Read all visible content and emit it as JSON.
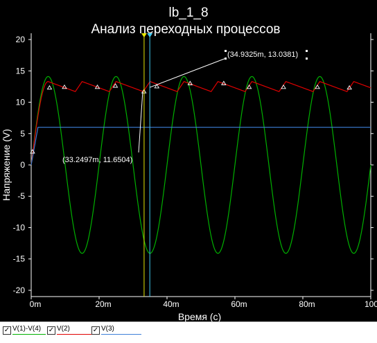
{
  "chart_data": {
    "type": "line",
    "title": "lb_1_8",
    "subtitle": "Анализ переходных процессов",
    "xlabel": "Время (с)",
    "ylabel": "Напряжение (V)",
    "xlim": [
      0,
      100
    ],
    "ylim": [
      -21,
      21
    ],
    "x_unit": "ms",
    "x_ticks": [
      0,
      20,
      40,
      60,
      80,
      100
    ],
    "x_tick_labels": [
      "0m",
      "20m",
      "40m",
      "60m",
      "80m",
      "100m"
    ],
    "y_ticks": [
      20,
      15,
      10,
      5,
      0,
      -5,
      -10,
      -15,
      -20
    ],
    "y_tick_labels": [
      "20",
      "15",
      "10",
      "5",
      "0",
      "-5",
      "-10",
      "-15",
      "-20"
    ],
    "grid": false,
    "series": [
      {
        "name": "V(1)-V(4)",
        "color": "#00b000",
        "shape": "sine",
        "amplitude": 14.1,
        "frequency_hz": 50,
        "phase_deg": 0
      },
      {
        "name": "V(2)",
        "color": "#e00000",
        "shape": "rectified-ripple",
        "peak": 13.3,
        "discharge_to": 11.7,
        "period_ms": 10
      },
      {
        "name": "V(3)",
        "color": "#3d7fd8",
        "shape": "step",
        "points": [
          [
            0,
            0
          ],
          [
            2,
            6
          ],
          [
            100,
            6
          ]
        ]
      }
    ],
    "cursors": [
      {
        "x": 33.2497,
        "y": 11.6504,
        "label": "(33.2497m, 11.6504)",
        "color": "#e8e800"
      },
      {
        "x": 34.9325,
        "y": 13.0381,
        "label": "(34.9325m, 13.0381)",
        "color": "#40c8f0"
      }
    ],
    "markers": [
      [
        0.4,
        2.1
      ],
      [
        5.4,
        12.3
      ],
      [
        9.8,
        12.4
      ],
      [
        19.5,
        12.4
      ],
      [
        24.8,
        12.6
      ],
      [
        33.2,
        11.7
      ],
      [
        37.0,
        12.5
      ],
      [
        46.8,
        13.0
      ],
      [
        56.7,
        13.0
      ],
      [
        64.2,
        12.4
      ],
      [
        74.3,
        12.4
      ],
      [
        84.3,
        12.4
      ],
      [
        93.7,
        12.3
      ]
    ]
  },
  "legend": {
    "items": [
      {
        "label": "V(1)-V(4)",
        "color": "#00b000",
        "checked": "✓"
      },
      {
        "label": "V(2)",
        "color": "#e00000",
        "checked": "✓"
      },
      {
        "label": "V(3)",
        "color": "#3d7fd8",
        "checked": "✓"
      }
    ]
  },
  "style": {
    "background": "#000000",
    "axis_color": "#ffffff",
    "text_color": "#ffffff"
  }
}
